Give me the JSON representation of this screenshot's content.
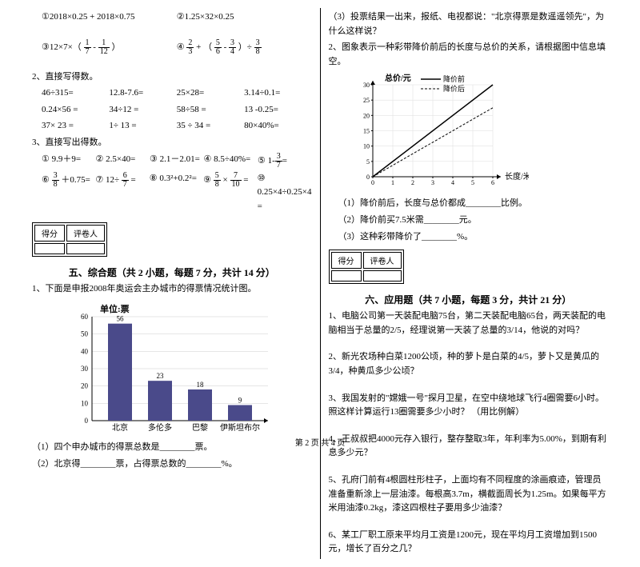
{
  "left": {
    "q1": "①2018×0.25 + 2018×0.75",
    "q2": "②1.25×32×0.25",
    "q3_pre": "③12×7×（",
    "q3_f1": {
      "n": "1",
      "d": "7"
    },
    "q3_mid": " - ",
    "q3_f2": {
      "n": "1",
      "d": "12"
    },
    "q3_post": "）",
    "q4_pre": "④",
    "q4_f1": {
      "n": "2",
      "d": "3"
    },
    "q4_mid1": " + （",
    "q4_f2": {
      "n": "5",
      "d": "6"
    },
    "q4_mid2": " - ",
    "q4_f3": {
      "n": "3",
      "d": "4"
    },
    "q4_mid3": "）÷",
    "q4_f4": {
      "n": "3",
      "d": "8"
    },
    "s2_title": "2、直接写得数。",
    "s2_rows": [
      [
        "46÷315=",
        "12.8-7.6=",
        "25×28=",
        "3.14÷0.1="
      ],
      [
        "0.24×56 =",
        "34÷12 =",
        "58÷58 =",
        "13 -0.25="
      ],
      [
        "37× 23 =",
        "1÷ 13 =",
        "35 ÷ 34 =",
        "80×40%="
      ]
    ],
    "s3_title": "3、直接写出得数。",
    "s3a": [
      "① 9.9＋9=",
      "② 2.5×40=",
      "③ 2.1－2.01=",
      "④ 8.5÷40%=",
      "⑤ 1-"
    ],
    "s3a_f": {
      "n": "3",
      "d": "7"
    },
    "s3a_end": "=",
    "s3b_1": "⑥",
    "s3b_f1": {
      "n": "3",
      "d": "8"
    },
    "s3b_1b": "＋0.75=",
    "s3b_2": "⑦ 12÷",
    "s3b_f2": {
      "n": "6",
      "d": "7"
    },
    "s3b_2b": "=",
    "s3b_3": "⑧ 0.3²+0.2²=",
    "s3b_4": "⑨ ",
    "s3b_f3": {
      "n": "5",
      "d": "8"
    },
    "s3b_4b": "×",
    "s3b_f4": {
      "n": "7",
      "d": "10"
    },
    "s3b_4c": "=",
    "s3b_5": "⑩ 0.25×4÷0.25×4 =",
    "score1": "得分",
    "score2": "评卷人",
    "section5": "五、综合题（共 2 小题，每题 7 分，共计 14 分）",
    "q51": "1、下面是申报2008年奥运会主办城市的得票情况统计图。",
    "chart": {
      "unit": "单位:票",
      "ymax": 60,
      "ystep": 10,
      "categories": [
        "北京",
        "多伦多",
        "巴黎",
        "伊斯坦布尔"
      ],
      "values": [
        56,
        23,
        18,
        9
      ],
      "bar_color": "#4a4a8a",
      "bg": "#ffffff"
    },
    "q51_1": "（1）四个申办城市的得票总数是________票。",
    "q51_2": "（2）北京得________票，占得票总数的________%。"
  },
  "right": {
    "q51_3": "（3）投票结果一出来，报纸、电视都说：\"北京得票是数遥遥领先\"，为什么这样说？",
    "q2_title": "2、图象表示一种彩带降价前后的长度与总价的关系，请根据图中信息填空。",
    "linechart": {
      "ylabel": "总价/元",
      "xlabel": "长度/米",
      "legend": [
        "降价前",
        "降价后"
      ],
      "xmax": 6,
      "ymax": 30,
      "ystep": 5,
      "line1": {
        "color": "#000",
        "points": [
          [
            0,
            0
          ],
          [
            6,
            30
          ]
        ],
        "style": "solid"
      },
      "line2": {
        "color": "#000",
        "points": [
          [
            0,
            0
          ],
          [
            6,
            22.5
          ]
        ],
        "style": "dashed"
      }
    },
    "q2_1": "（1）降价前后，长度与总价都成________比例。",
    "q2_2": "（2）降价前买7.5米需________元。",
    "q2_3": "（3）这种彩带降价了________%。",
    "section6": "六、应用题（共 7 小题，每题 3 分，共计 21 分）",
    "q61": "1、电脑公司第一天装配电脑75台，第二天装配电脑65台，两天装配的电脑相当于总量的2/5，经理说第一天装了总量的3/14，他说的对吗？",
    "q62": "2、新光农场种白菜1200公顷，种的萝卜是白菜的4/5，萝卜又是黄瓜的3/4，种黄瓜多少公顷？",
    "q63": "3、我国发射的\"嫦娥一号\"探月卫星，在空中绕地球飞行4圈需要6小时。照这样计算运行13圈需要多少小时？ （用比例解）",
    "q64": "4、王叔叔把4000元存入银行，整存整取3年，年利率为5.00%，到期有利息多少元？",
    "q65": "5、孔府门前有4根圆柱形柱子，上面均有不同程度的涂画痕迹，管理员准备重新涂上一层油漆。每根高3.7m，横截面周长为1.25m。如果每平方米用油漆0.2kg，漆这四根柱子要用多少油漆？",
    "q66": "6、某工厂职工原来平均月工资是1200元，现在平均月工资增加到1500元，增长了百分之几？"
  },
  "footer": "第 2 页 共 4 页"
}
